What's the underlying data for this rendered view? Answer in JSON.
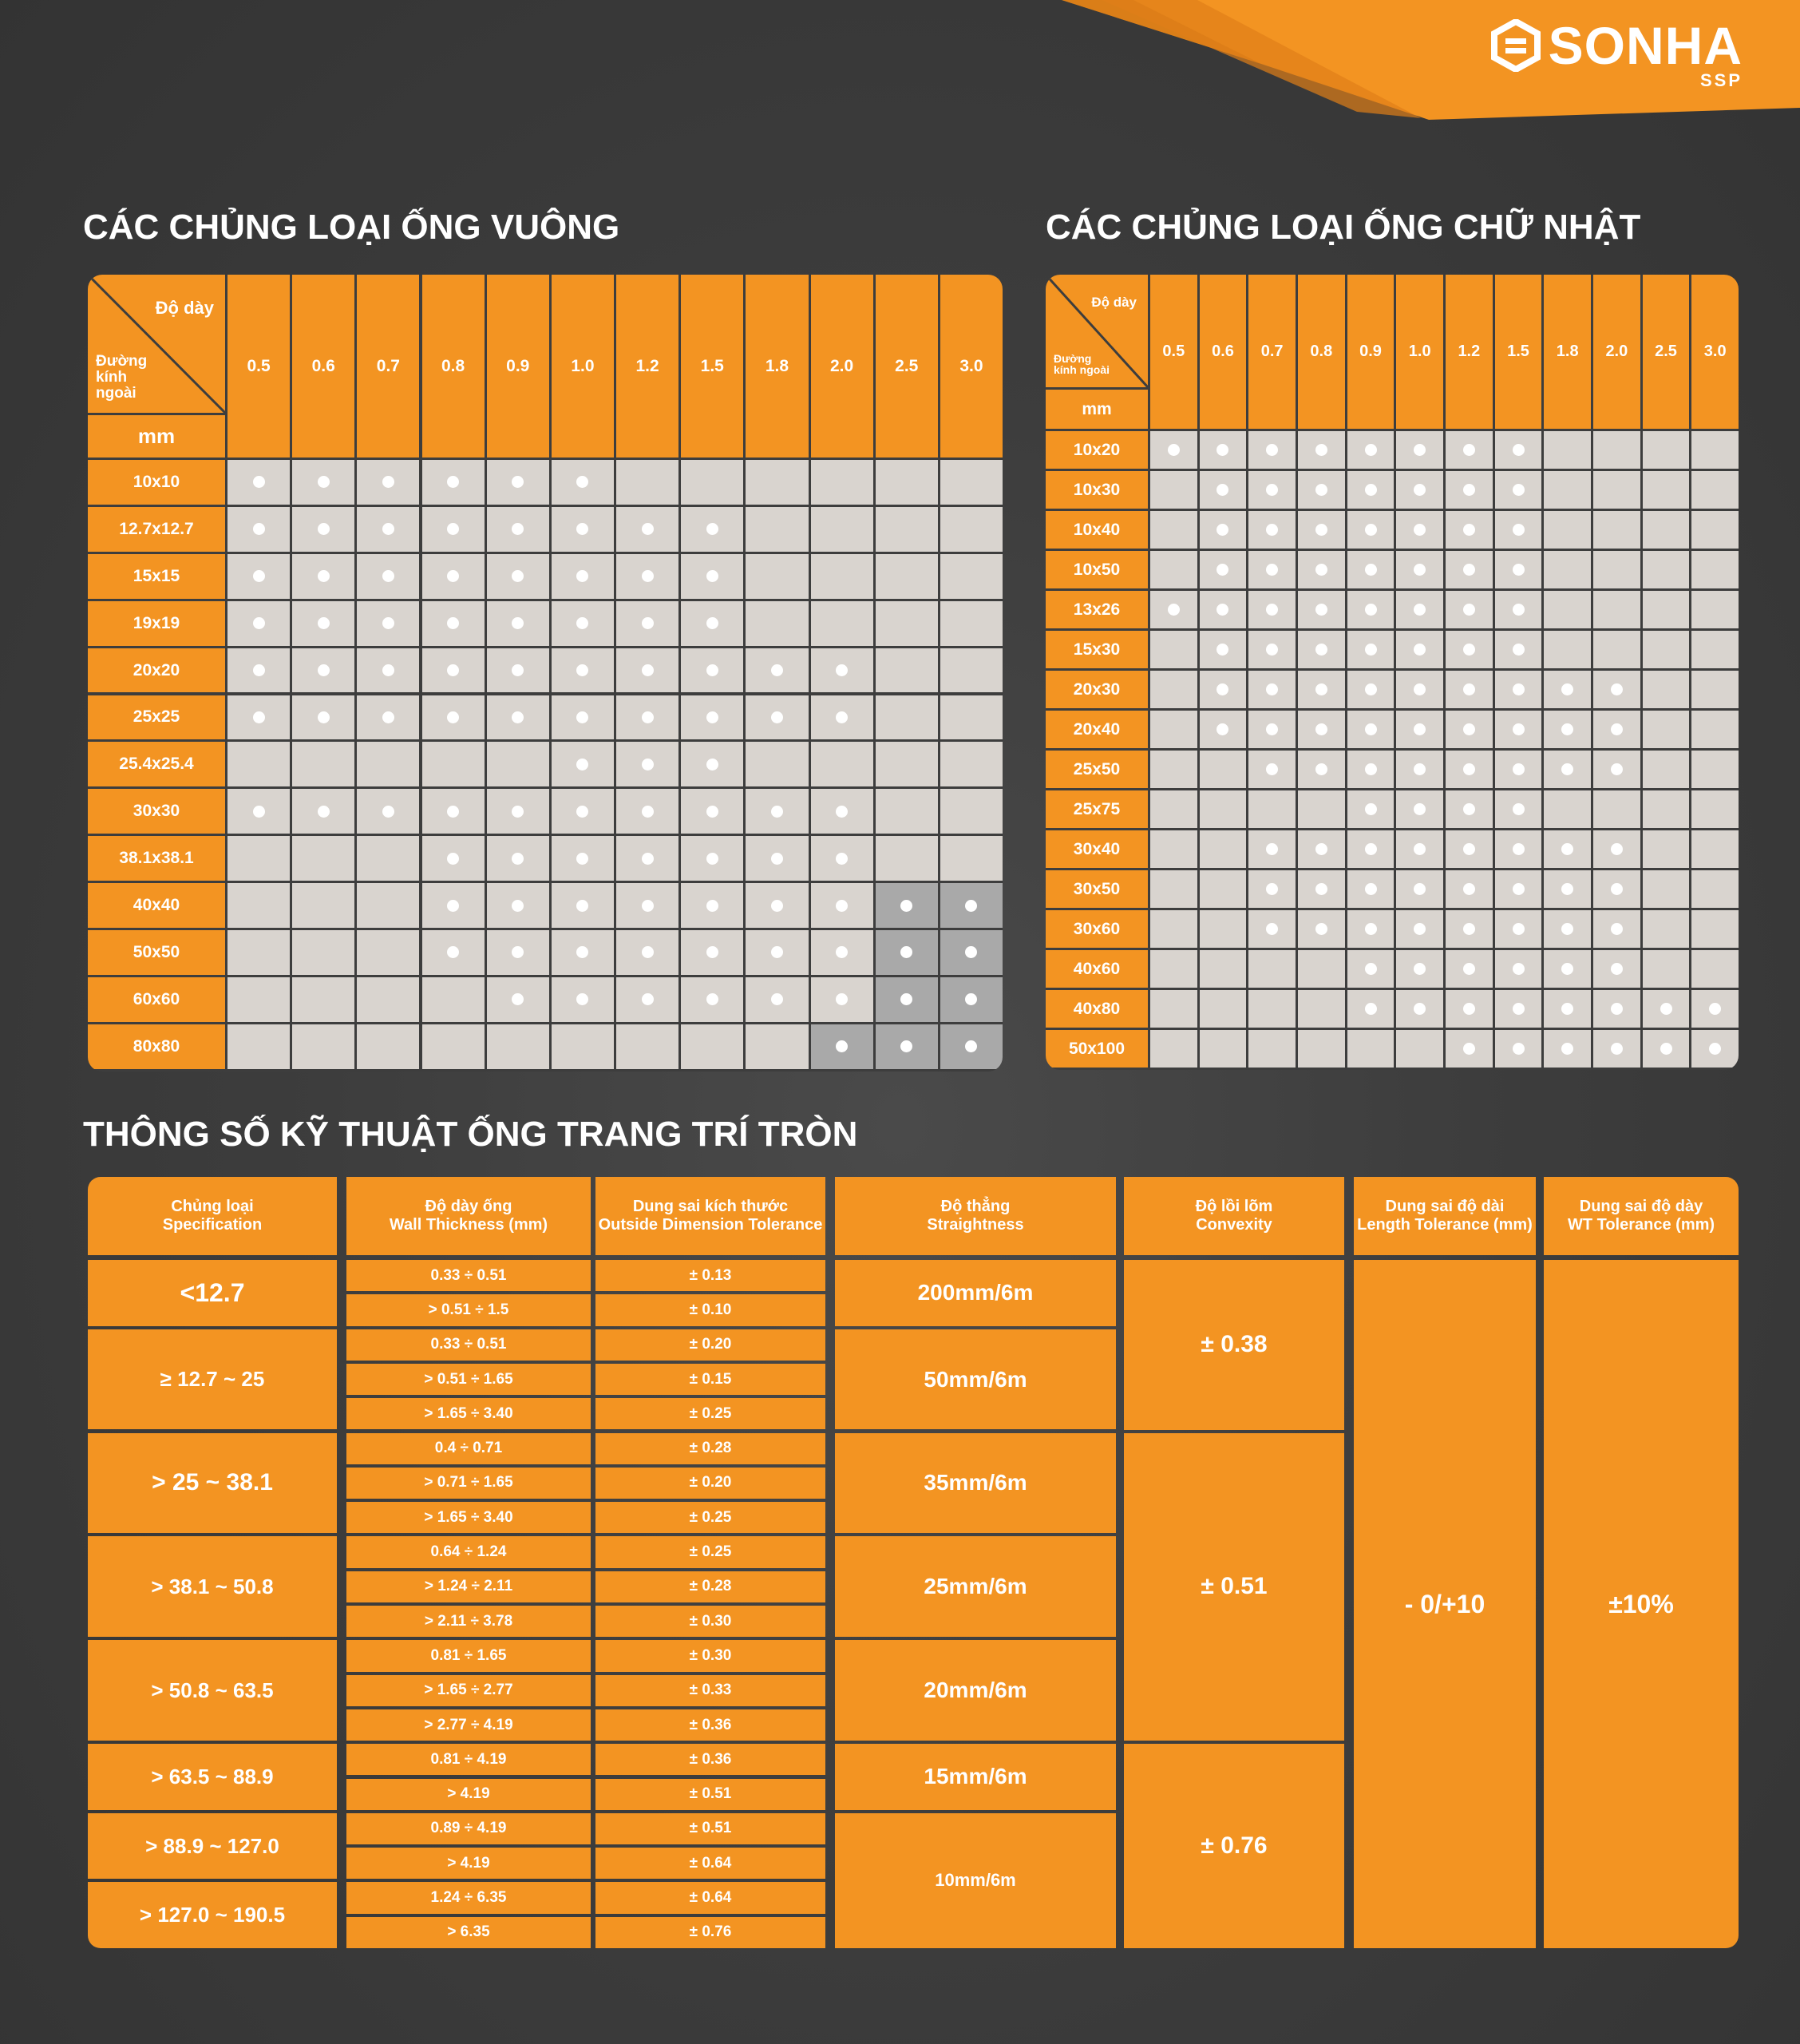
{
  "brand": {
    "name": "SONHA",
    "sub": "SSP",
    "accent": "#f39422"
  },
  "square": {
    "title": "CÁC CHỦNG LOẠI ỐNG VUÔNG",
    "hdr_thickness": "Độ dày",
    "hdr_outer": "Đường kính ngoài",
    "unit": "mm",
    "thicknesses": [
      "0.5",
      "0.6",
      "0.7",
      "0.8",
      "0.9",
      "1.0",
      "1.2",
      "1.5",
      "1.8",
      "2.0",
      "2.5",
      "3.0"
    ],
    "rows": [
      {
        "size": "10x10",
        "avail": [
          1,
          1,
          1,
          1,
          1,
          1,
          0,
          0,
          0,
          0,
          0,
          0
        ]
      },
      {
        "size": "12.7x12.7",
        "avail": [
          1,
          1,
          1,
          1,
          1,
          1,
          1,
          1,
          0,
          0,
          0,
          0
        ]
      },
      {
        "size": "15x15",
        "avail": [
          1,
          1,
          1,
          1,
          1,
          1,
          1,
          1,
          0,
          0,
          0,
          0
        ]
      },
      {
        "size": "19x19",
        "avail": [
          1,
          1,
          1,
          1,
          1,
          1,
          1,
          1,
          0,
          0,
          0,
          0
        ]
      },
      {
        "size": "20x20",
        "avail": [
          1,
          1,
          1,
          1,
          1,
          1,
          1,
          1,
          1,
          1,
          0,
          0
        ]
      },
      {
        "size": "25x25",
        "avail": [
          1,
          1,
          1,
          1,
          1,
          1,
          1,
          1,
          1,
          1,
          0,
          0
        ]
      },
      {
        "size": "25.4x25.4",
        "avail": [
          0,
          0,
          0,
          0,
          0,
          1,
          1,
          1,
          0,
          0,
          0,
          0
        ]
      },
      {
        "size": "30x30",
        "avail": [
          1,
          1,
          1,
          1,
          1,
          1,
          1,
          1,
          1,
          1,
          0,
          0
        ]
      },
      {
        "size": "38.1x38.1",
        "avail": [
          0,
          0,
          0,
          1,
          1,
          1,
          1,
          1,
          1,
          1,
          0,
          0
        ]
      },
      {
        "size": "40x40",
        "avail": [
          0,
          0,
          0,
          1,
          1,
          1,
          1,
          1,
          1,
          1,
          2,
          2
        ]
      },
      {
        "size": "50x50",
        "avail": [
          0,
          0,
          0,
          1,
          1,
          1,
          1,
          1,
          1,
          1,
          2,
          2
        ]
      },
      {
        "size": "60x60",
        "avail": [
          0,
          0,
          0,
          0,
          1,
          1,
          1,
          1,
          1,
          1,
          2,
          2
        ]
      },
      {
        "size": "80x80",
        "avail": [
          0,
          0,
          0,
          0,
          0,
          0,
          0,
          0,
          0,
          2,
          2,
          2
        ]
      }
    ]
  },
  "rect": {
    "title": "CÁC CHỦNG LOẠI ỐNG CHỮ NHẬT",
    "hdr_thickness": "Độ dày",
    "hdr_outer": "Đường kính ngoài",
    "unit": "mm",
    "thicknesses": [
      "0.5",
      "0.6",
      "0.7",
      "0.8",
      "0.9",
      "1.0",
      "1.2",
      "1.5",
      "1.8",
      "2.0",
      "2.5",
      "3.0"
    ],
    "rows": [
      {
        "size": "10x20",
        "avail": [
          1,
          1,
          1,
          1,
          1,
          1,
          1,
          1,
          0,
          0,
          0,
          0
        ]
      },
      {
        "size": "10x30",
        "avail": [
          0,
          1,
          1,
          1,
          1,
          1,
          1,
          1,
          0,
          0,
          0,
          0
        ]
      },
      {
        "size": "10x40",
        "avail": [
          0,
          1,
          1,
          1,
          1,
          1,
          1,
          1,
          0,
          0,
          0,
          0
        ]
      },
      {
        "size": "10x50",
        "avail": [
          0,
          1,
          1,
          1,
          1,
          1,
          1,
          1,
          0,
          0,
          0,
          0
        ]
      },
      {
        "size": "13x26",
        "avail": [
          1,
          1,
          1,
          1,
          1,
          1,
          1,
          1,
          0,
          0,
          0,
          0
        ]
      },
      {
        "size": "15x30",
        "avail": [
          0,
          1,
          1,
          1,
          1,
          1,
          1,
          1,
          0,
          0,
          0,
          0
        ]
      },
      {
        "size": "20x30",
        "avail": [
          0,
          1,
          1,
          1,
          1,
          1,
          1,
          1,
          1,
          1,
          0,
          0
        ]
      },
      {
        "size": "20x40",
        "avail": [
          0,
          1,
          1,
          1,
          1,
          1,
          1,
          1,
          1,
          1,
          0,
          0
        ]
      },
      {
        "size": "25x50",
        "avail": [
          0,
          0,
          1,
          1,
          1,
          1,
          1,
          1,
          1,
          1,
          0,
          0
        ]
      },
      {
        "size": "25x75",
        "avail": [
          0,
          0,
          0,
          0,
          1,
          1,
          1,
          1,
          0,
          0,
          0,
          0
        ]
      },
      {
        "size": "30x40",
        "avail": [
          0,
          0,
          1,
          1,
          1,
          1,
          1,
          1,
          1,
          1,
          0,
          0
        ]
      },
      {
        "size": "30x50",
        "avail": [
          0,
          0,
          1,
          1,
          1,
          1,
          1,
          1,
          1,
          1,
          0,
          0
        ]
      },
      {
        "size": "30x60",
        "avail": [
          0,
          0,
          1,
          1,
          1,
          1,
          1,
          1,
          1,
          1,
          0,
          0
        ]
      },
      {
        "size": "40x60",
        "avail": [
          0,
          0,
          0,
          0,
          1,
          1,
          1,
          1,
          1,
          1,
          0,
          0
        ]
      },
      {
        "size": "40x80",
        "avail": [
          0,
          0,
          0,
          0,
          1,
          1,
          1,
          1,
          1,
          1,
          1,
          1
        ]
      },
      {
        "size": "50x100",
        "avail": [
          0,
          0,
          0,
          0,
          0,
          0,
          1,
          1,
          1,
          1,
          1,
          1
        ]
      }
    ]
  },
  "round": {
    "title": "THÔNG SỐ KỸ THUẬT ỐNG TRANG TRÍ TRÒN",
    "headers": [
      {
        "vi": "Chủng loại",
        "en": "Specification"
      },
      {
        "vi": "Độ dày ống",
        "en": "Wall Thickness (mm)"
      },
      {
        "vi": "Dung sai kích thước",
        "en": "Outside Dimension Tolerance"
      },
      {
        "vi": "Độ thẳng",
        "en": "Straightness"
      },
      {
        "vi": "Độ lồi lõm",
        "en": "Convexity"
      },
      {
        "vi": "Dung sai độ dài",
        "en": "Length Tolerance (mm)"
      },
      {
        "vi": "Dung sai độ dày",
        "en": "WT Tolerance (mm)"
      }
    ],
    "groups": [
      {
        "spec": "<12.7",
        "straight": "200mm/6m",
        "sub": [
          [
            "0.33 ÷ 0.51",
            "± 0.13"
          ],
          [
            "> 0.51 ÷ 1.5",
            "± 0.10"
          ]
        ]
      },
      {
        "spec": "≥ 12.7 ~ 25",
        "straight": "50mm/6m",
        "sub": [
          [
            "0.33 ÷ 0.51",
            "± 0.20"
          ],
          [
            "> 0.51 ÷ 1.65",
            "± 0.15"
          ],
          [
            "> 1.65 ÷ 3.40",
            "± 0.25"
          ]
        ]
      },
      {
        "spec": "> 25 ~ 38.1",
        "straight": "35mm/6m",
        "sub": [
          [
            "0.4 ÷ 0.71",
            "± 0.28"
          ],
          [
            "> 0.71 ÷ 1.65",
            "± 0.20"
          ],
          [
            "> 1.65 ÷ 3.40",
            "± 0.25"
          ]
        ]
      },
      {
        "spec": "> 38.1 ~ 50.8",
        "straight": "25mm/6m",
        "sub": [
          [
            "0.64 ÷ 1.24",
            "± 0.25"
          ],
          [
            "> 1.24 ÷ 2.11",
            "± 0.28"
          ],
          [
            "> 2.11 ÷ 3.78",
            "± 0.30"
          ]
        ]
      },
      {
        "spec": "> 50.8 ~ 63.5",
        "straight": "20mm/6m",
        "sub": [
          [
            "0.81 ÷ 1.65",
            "± 0.30"
          ],
          [
            "> 1.65 ÷ 2.77",
            "± 0.33"
          ],
          [
            "> 2.77 ÷ 4.19",
            "± 0.36"
          ]
        ]
      },
      {
        "spec": "> 63.5 ~ 88.9",
        "straight": "15mm/6m",
        "sub": [
          [
            "0.81 ÷ 4.19",
            "± 0.36"
          ],
          [
            "> 4.19",
            "± 0.51"
          ]
        ]
      },
      {
        "spec": "> 88.9 ~ 127.0",
        "straight": "10mm/6m",
        "sub": [
          [
            "0.89 ÷ 4.19",
            "± 0.51"
          ],
          [
            "> 4.19",
            "± 0.64"
          ]
        ]
      },
      {
        "spec": "> 127.0 ~ 190.5",
        "straight": "",
        "sub": [
          [
            "1.24 ÷ 6.35",
            "± 0.64"
          ],
          [
            "> 6.35",
            "± 0.76"
          ]
        ]
      }
    ],
    "convexity": [
      "± 0.38",
      "± 0.51",
      "± 0.76"
    ],
    "length_tol": "- 0/+10",
    "wt_tol": "±10%"
  }
}
